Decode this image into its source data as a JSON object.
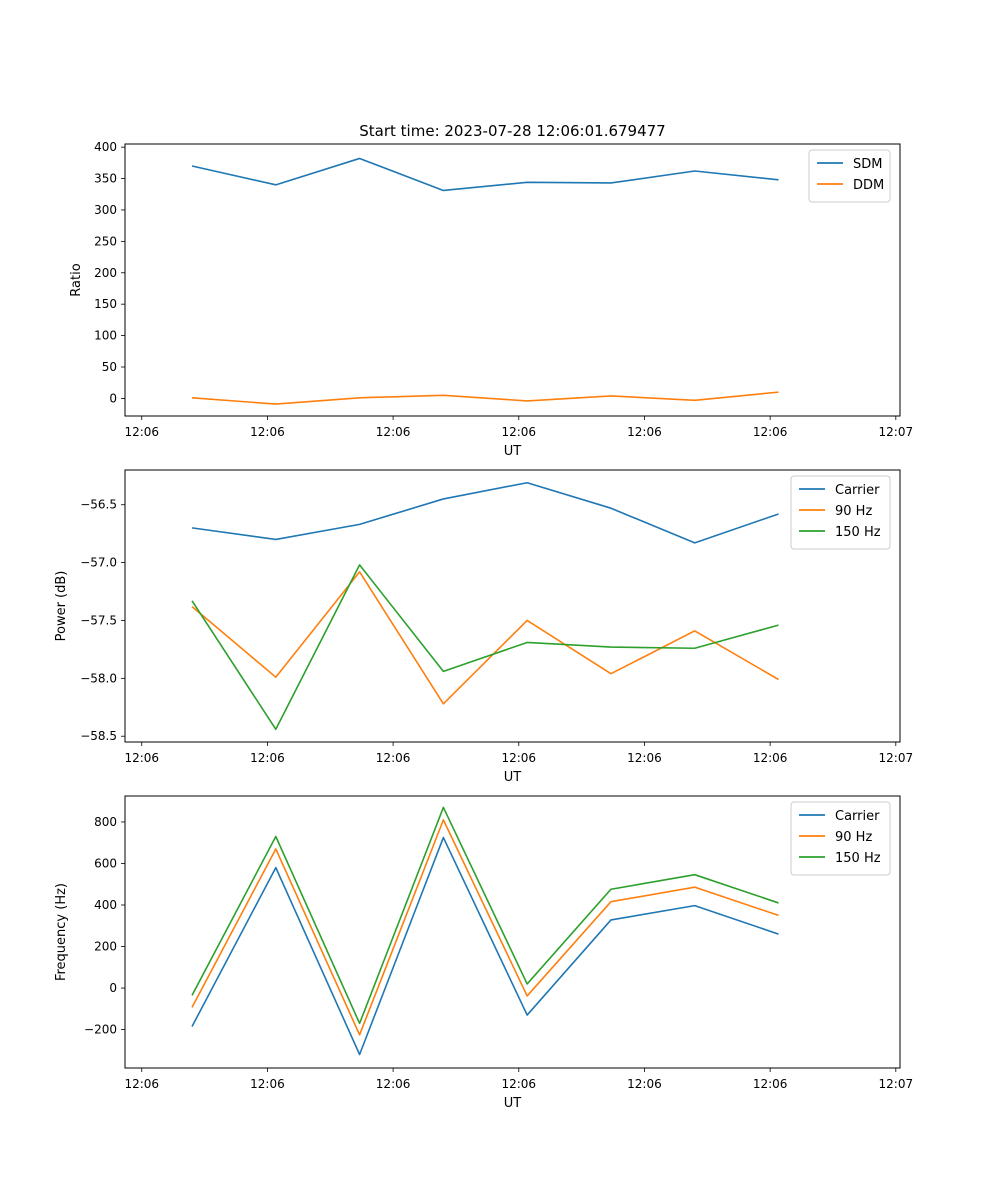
{
  "figure": {
    "title": "Start time: 2023-07-28 12:06:01.679477"
  },
  "chart_data": [
    {
      "type": "line",
      "title": "Start time: 2023-07-28 12:06:01.679477",
      "xlabel": "UT",
      "ylabel": "Ratio",
      "x": [
        1,
        2,
        3,
        4,
        5,
        6,
        7,
        8
      ],
      "xlim": [
        0.2,
        9.45
      ],
      "xticks": [
        0.4,
        1.9,
        3.4,
        4.9,
        6.4,
        7.9,
        9.4
      ],
      "xtick_labels": [
        "12:06",
        "12:06",
        "12:06",
        "12:06",
        "12:06",
        "12:06",
        "12:07"
      ],
      "ylim": [
        -28,
        405
      ],
      "yticks": [
        0,
        50,
        100,
        150,
        200,
        250,
        300,
        350,
        400
      ],
      "ytick_labels": [
        "0",
        "50",
        "100",
        "150",
        "200",
        "250",
        "300",
        "350",
        "400"
      ],
      "legend": "top-right",
      "series": [
        {
          "name": "SDM",
          "color": "#1f77b4",
          "values": [
            370,
            340,
            382,
            331,
            344,
            343,
            362,
            348
          ]
        },
        {
          "name": "DDM",
          "color": "#ff7f0e",
          "values": [
            1,
            -9,
            1,
            5,
            -4,
            4,
            -3,
            10
          ]
        }
      ]
    },
    {
      "type": "line",
      "title": "",
      "xlabel": "UT",
      "ylabel": "Power (dB)",
      "x": [
        1,
        2,
        3,
        4,
        5,
        6,
        7,
        8
      ],
      "xlim": [
        0.2,
        9.45
      ],
      "xticks": [
        0.4,
        1.9,
        3.4,
        4.9,
        6.4,
        7.9,
        9.4
      ],
      "xtick_labels": [
        "12:06",
        "12:06",
        "12:06",
        "12:06",
        "12:06",
        "12:06",
        "12:07"
      ],
      "ylim": [
        -58.55,
        -56.2
      ],
      "yticks": [
        -58.5,
        -58.0,
        -57.5,
        -57.0,
        -56.5
      ],
      "ytick_labels": [
        "−58.5",
        "−58.0",
        "−57.5",
        "−57.0",
        "−56.5"
      ],
      "legend": "top-right",
      "series": [
        {
          "name": "Carrier",
          "color": "#1f77b4",
          "values": [
            -56.7,
            -56.8,
            -56.67,
            -56.45,
            -56.31,
            -56.53,
            -56.83,
            -56.58
          ]
        },
        {
          "name": "90 Hz",
          "color": "#ff7f0e",
          "values": [
            -57.38,
            -57.99,
            -57.08,
            -58.22,
            -57.5,
            -57.96,
            -57.59,
            -58.01
          ]
        },
        {
          "name": "150 Hz",
          "color": "#2ca02c",
          "values": [
            -57.33,
            -58.44,
            -57.02,
            -57.94,
            -57.69,
            -57.73,
            -57.74,
            -57.54
          ]
        }
      ]
    },
    {
      "type": "line",
      "title": "",
      "xlabel": "UT",
      "ylabel": "Frequency (Hz)",
      "x": [
        1,
        2,
        3,
        4,
        5,
        6,
        7,
        8
      ],
      "xlim": [
        0.2,
        9.45
      ],
      "xticks": [
        0.4,
        1.9,
        3.4,
        4.9,
        6.4,
        7.9,
        9.4
      ],
      "xtick_labels": [
        "12:06",
        "12:06",
        "12:06",
        "12:06",
        "12:06",
        "12:06",
        "12:07"
      ],
      "ylim": [
        -385,
        925
      ],
      "yticks": [
        -200,
        0,
        200,
        400,
        600,
        800
      ],
      "ytick_labels": [
        "−200",
        "0",
        "200",
        "400",
        "600",
        "800"
      ],
      "legend": "top-right",
      "series": [
        {
          "name": "Carrier",
          "color": "#1f77b4",
          "values": [
            -185,
            580,
            -320,
            725,
            -130,
            328,
            397,
            260
          ]
        },
        {
          "name": "90 Hz",
          "color": "#ff7f0e",
          "values": [
            -93,
            670,
            -225,
            810,
            -38,
            416,
            486,
            350
          ]
        },
        {
          "name": "150 Hz",
          "color": "#2ca02c",
          "values": [
            -35,
            730,
            -170,
            870,
            20,
            476,
            546,
            410
          ]
        }
      ]
    }
  ]
}
